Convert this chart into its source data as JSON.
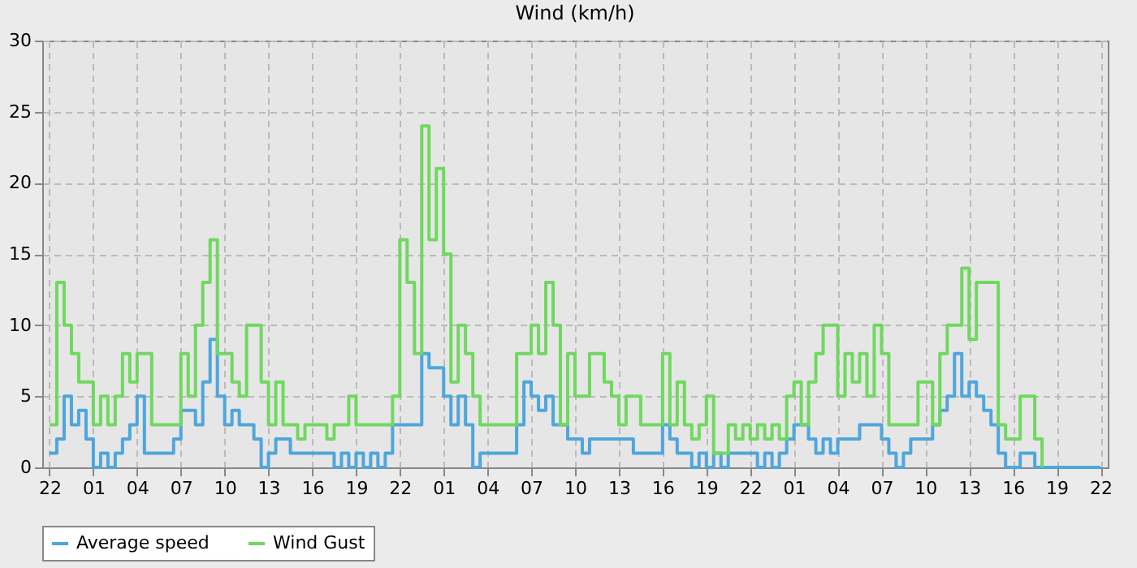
{
  "chart_data": {
    "type": "step",
    "title": "Wind (km/h)",
    "categories": [
      "22",
      null,
      null,
      null,
      null,
      null,
      "01",
      null,
      null,
      null,
      null,
      null,
      "04",
      null,
      null,
      null,
      null,
      null,
      "07",
      null,
      null,
      null,
      null,
      null,
      "10",
      null,
      null,
      null,
      null,
      null,
      "13",
      null,
      null,
      null,
      null,
      null,
      "16",
      null,
      null,
      null,
      null,
      null,
      "19",
      null,
      null,
      null,
      null,
      null,
      "22",
      null,
      null,
      null,
      null,
      null,
      "01",
      null,
      null,
      null,
      null,
      null,
      "04",
      null,
      null,
      null,
      null,
      null,
      "07",
      null,
      null,
      null,
      null,
      null,
      "10",
      null,
      null,
      null,
      null,
      null,
      "13",
      null,
      null,
      null,
      null,
      null,
      "16",
      null,
      null,
      null,
      null,
      null,
      "19",
      null,
      null,
      null,
      null,
      null,
      "22",
      null,
      null,
      null,
      null,
      null,
      "01",
      null,
      null,
      null,
      null,
      null,
      "04",
      null,
      null,
      null,
      null,
      null,
      "07",
      null,
      null,
      null,
      null,
      null,
      "10",
      null,
      null,
      null,
      null,
      null,
      "13",
      null,
      null,
      null,
      null,
      null,
      "16",
      null,
      null,
      null,
      null,
      null,
      "19",
      null,
      null,
      null,
      null,
      null,
      "22"
    ],
    "series": [
      {
        "name": "Average speed",
        "color": "#4ea6dc",
        "values": [
          1,
          2,
          5,
          3,
          4,
          2,
          0,
          1,
          0,
          1,
          2,
          3,
          5,
          1,
          1,
          1,
          1,
          2,
          4,
          4,
          3,
          6,
          9,
          5,
          3,
          4,
          3,
          3,
          2,
          0,
          1,
          2,
          2,
          1,
          1,
          1,
          1,
          1,
          1,
          0,
          1,
          0,
          1,
          0,
          1,
          0,
          1,
          3,
          3,
          3,
          3,
          8,
          7,
          7,
          5,
          3,
          5,
          3,
          0,
          1,
          1,
          1,
          1,
          1,
          3,
          6,
          5,
          4,
          5,
          3,
          3,
          2,
          2,
          1,
          2,
          2,
          2,
          2,
          2,
          2,
          1,
          1,
          1,
          1,
          3,
          2,
          1,
          1,
          0,
          1,
          0,
          1,
          0,
          1,
          1,
          1,
          1,
          0,
          1,
          0,
          1,
          2,
          3,
          3,
          2,
          1,
          2,
          1,
          2,
          2,
          2,
          3,
          3,
          3,
          2,
          1,
          0,
          1,
          2,
          2,
          2,
          3,
          4,
          5,
          8,
          5,
          6,
          5,
          4,
          3,
          1,
          0,
          0,
          1,
          1,
          0,
          0,
          0,
          0,
          0,
          0,
          0,
          0,
          0,
          0
        ]
      },
      {
        "name": "Wind Gust",
        "color": "#70d860",
        "values": [
          3,
          13,
          10,
          8,
          6,
          6,
          3,
          5,
          3,
          5,
          8,
          6,
          8,
          8,
          3,
          3,
          3,
          3,
          8,
          5,
          10,
          13,
          16,
          8,
          8,
          6,
          5,
          10,
          10,
          6,
          3,
          6,
          3,
          3,
          2,
          3,
          3,
          3,
          2,
          3,
          3,
          5,
          3,
          3,
          3,
          3,
          3,
          5,
          16,
          13,
          8,
          24,
          16,
          21,
          15,
          6,
          10,
          8,
          5,
          3,
          3,
          3,
          3,
          3,
          8,
          8,
          10,
          8,
          13,
          10,
          3,
          8,
          5,
          5,
          8,
          8,
          6,
          5,
          3,
          5,
          5,
          3,
          3,
          3,
          8,
          3,
          6,
          3,
          2,
          3,
          5,
          1,
          1,
          3,
          2,
          3,
          2,
          3,
          2,
          3,
          2,
          5,
          6,
          3,
          6,
          8,
          10,
          10,
          5,
          8,
          6,
          8,
          5,
          10,
          8,
          3,
          3,
          3,
          3,
          6,
          6,
          3,
          8,
          10,
          10,
          14,
          9,
          13,
          13,
          13,
          3,
          2,
          2,
          5,
          5,
          2,
          0,
          null,
          null,
          null,
          null,
          null,
          null,
          null,
          null
        ]
      }
    ],
    "ylim": [
      0,
      30
    ],
    "yticks": [
      0,
      5,
      10,
      15,
      20,
      25,
      30
    ],
    "grid": true,
    "legend": "bottom",
    "line_style": "solid"
  }
}
